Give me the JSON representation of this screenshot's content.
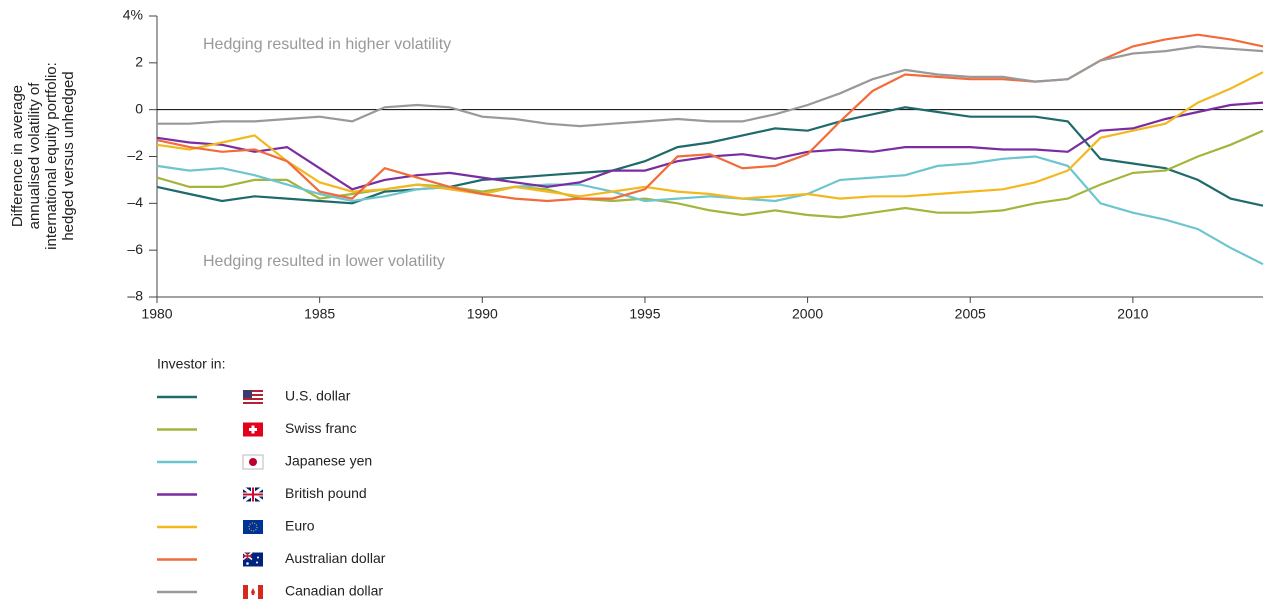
{
  "chart_data": {
    "type": "line",
    "ylabel": [
      "Difference in average",
      "annualised volatility of",
      "international equity portfolio:",
      "hedged versus unhedged"
    ],
    "annotations": [
      "Hedging resulted in higher volatility",
      "Hedging resulted in lower volatility"
    ],
    "legend_title": "Investor in:",
    "x": [
      1980,
      1981,
      1982,
      1983,
      1984,
      1985,
      1986,
      1987,
      1988,
      1989,
      1990,
      1991,
      1992,
      1993,
      1994,
      1995,
      1996,
      1997,
      1998,
      1999,
      2000,
      2001,
      2002,
      2003,
      2004,
      2005,
      2006,
      2007,
      2008,
      2009,
      2010,
      2011,
      2012,
      2013,
      2014
    ],
    "xlim": [
      1980,
      2014
    ],
    "xticks": [
      1980,
      1985,
      1990,
      1995,
      2000,
      2005,
      2010
    ],
    "ylim": [
      -8,
      4
    ],
    "yticks": [
      {
        "value": -8,
        "label": "–8"
      },
      {
        "value": -6,
        "label": "–6"
      },
      {
        "value": -4,
        "label": "–4"
      },
      {
        "value": -2,
        "label": "–2"
      },
      0,
      2,
      {
        "value": 4,
        "label": "4%"
      }
    ],
    "grid": false,
    "series": [
      {
        "name": "U.S. dollar",
        "color": "#1f6a6a",
        "values": [
          -3.3,
          -3.6,
          -3.9,
          -3.7,
          -3.8,
          -3.9,
          -4.0,
          -3.5,
          -3.4,
          -3.3,
          -3.0,
          -2.9,
          -2.8,
          -2.7,
          -2.6,
          -2.2,
          -1.6,
          -1.4,
          -1.1,
          -0.8,
          -0.9,
          -0.5,
          -0.2,
          0.1,
          -0.1,
          -0.3,
          -0.3,
          -0.3,
          -0.5,
          -2.1,
          -2.3,
          -2.5,
          -3.0,
          -3.8,
          -4.1
        ]
      },
      {
        "name": "Swiss franc",
        "color": "#a4b43c",
        "values": [
          -2.9,
          -3.3,
          -3.3,
          -3.0,
          -3.0,
          -3.8,
          -3.6,
          -3.4,
          -3.2,
          -3.3,
          -3.5,
          -3.3,
          -3.4,
          -3.8,
          -3.9,
          -3.8,
          -4.0,
          -4.3,
          -4.5,
          -4.3,
          -4.5,
          -4.6,
          -4.4,
          -4.2,
          -4.4,
          -4.4,
          -4.3,
          -4.0,
          -3.8,
          -3.2,
          -2.7,
          -2.6,
          -2.0,
          -1.5,
          -0.9
        ]
      },
      {
        "name": "Japanese yen",
        "color": "#6cc5cf",
        "values": [
          -2.4,
          -2.6,
          -2.5,
          -2.8,
          -3.2,
          -3.6,
          -3.9,
          -3.7,
          -3.4,
          -3.3,
          -3.6,
          -3.3,
          -3.2,
          -3.2,
          -3.5,
          -3.9,
          -3.8,
          -3.7,
          -3.8,
          -3.9,
          -3.6,
          -3.0,
          -2.9,
          -2.8,
          -2.4,
          -2.3,
          -2.1,
          -2.0,
          -2.4,
          -4.0,
          -4.4,
          -4.7,
          -5.1,
          -5.9,
          -6.6
        ]
      },
      {
        "name": "British pound",
        "color": "#7a2da0",
        "values": [
          -1.2,
          -1.4,
          -1.5,
          -1.8,
          -1.6,
          -2.5,
          -3.4,
          -3.0,
          -2.8,
          -2.7,
          -2.9,
          -3.1,
          -3.3,
          -3.1,
          -2.6,
          -2.6,
          -2.2,
          -2.0,
          -1.9,
          -2.1,
          -1.8,
          -1.7,
          -1.8,
          -1.6,
          -1.6,
          -1.6,
          -1.7,
          -1.7,
          -1.8,
          -0.9,
          -0.8,
          -0.4,
          -0.1,
          0.2,
          0.3
        ]
      },
      {
        "name": "Euro",
        "color": "#f2b81e",
        "values": [
          -1.5,
          -1.7,
          -1.4,
          -1.1,
          -2.2,
          -3.1,
          -3.5,
          -3.4,
          -3.2,
          -3.4,
          -3.6,
          -3.3,
          -3.5,
          -3.7,
          -3.5,
          -3.3,
          -3.5,
          -3.6,
          -3.8,
          -3.7,
          -3.6,
          -3.8,
          -3.7,
          -3.7,
          -3.6,
          -3.5,
          -3.4,
          -3.1,
          -2.6,
          -1.2,
          -0.9,
          -0.6,
          0.3,
          0.9,
          1.6
        ]
      },
      {
        "name": "Australian dollar",
        "color": "#f26b3a",
        "values": [
          -1.3,
          -1.6,
          -1.8,
          -1.7,
          -2.2,
          -3.5,
          -3.8,
          -2.5,
          -2.9,
          -3.3,
          -3.6,
          -3.8,
          -3.9,
          -3.8,
          -3.8,
          -3.4,
          -2.0,
          -1.9,
          -2.5,
          -2.4,
          -1.9,
          -0.5,
          0.8,
          1.5,
          1.4,
          1.3,
          1.3,
          1.2,
          1.3,
          2.1,
          2.7,
          3.0,
          3.2,
          3.0,
          2.7
        ]
      },
      {
        "name": "Canadian dollar",
        "color": "#999999",
        "values": [
          -0.6,
          -0.6,
          -0.5,
          -0.5,
          -0.4,
          -0.3,
          -0.5,
          0.1,
          0.2,
          0.1,
          -0.3,
          -0.4,
          -0.6,
          -0.7,
          -0.6,
          -0.5,
          -0.4,
          -0.5,
          -0.5,
          -0.2,
          0.2,
          0.7,
          1.3,
          1.7,
          1.5,
          1.4,
          1.4,
          1.2,
          1.3,
          2.1,
          2.4,
          2.5,
          2.7,
          2.6,
          2.5
        ]
      }
    ]
  }
}
